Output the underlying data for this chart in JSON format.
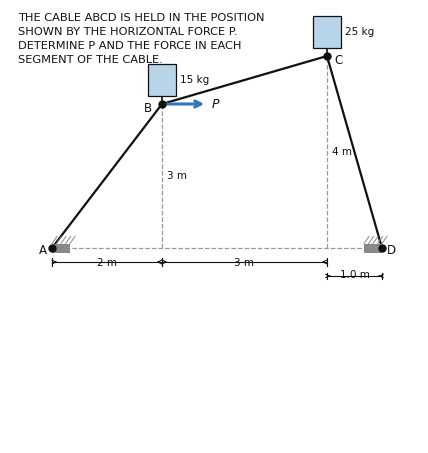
{
  "title_lines": [
    "THE CABLE ABCD IS HELD IN THE POSITION",
    "SHOWN BY THE HORIZONTAL FORCE P.",
    "DETERMINE P AND THE FORCE IN EACH",
    "SEGMENT OF THE CABLE."
  ],
  "background_color": "#ffffff",
  "title_fontsize": 8.2,
  "diagram": {
    "A": [
      0.0,
      0.0
    ],
    "B": [
      2.0,
      -3.0
    ],
    "C": [
      5.0,
      -4.0
    ],
    "D": [
      6.0,
      0.0
    ],
    "cable_color": "#111111",
    "dashed_color": "#999999",
    "wall_color": "#888888",
    "box_color": "#b8d4e8",
    "arrow_color": "#3377bb",
    "label_fontsize": 8.5,
    "small_fontsize": 7.5
  }
}
